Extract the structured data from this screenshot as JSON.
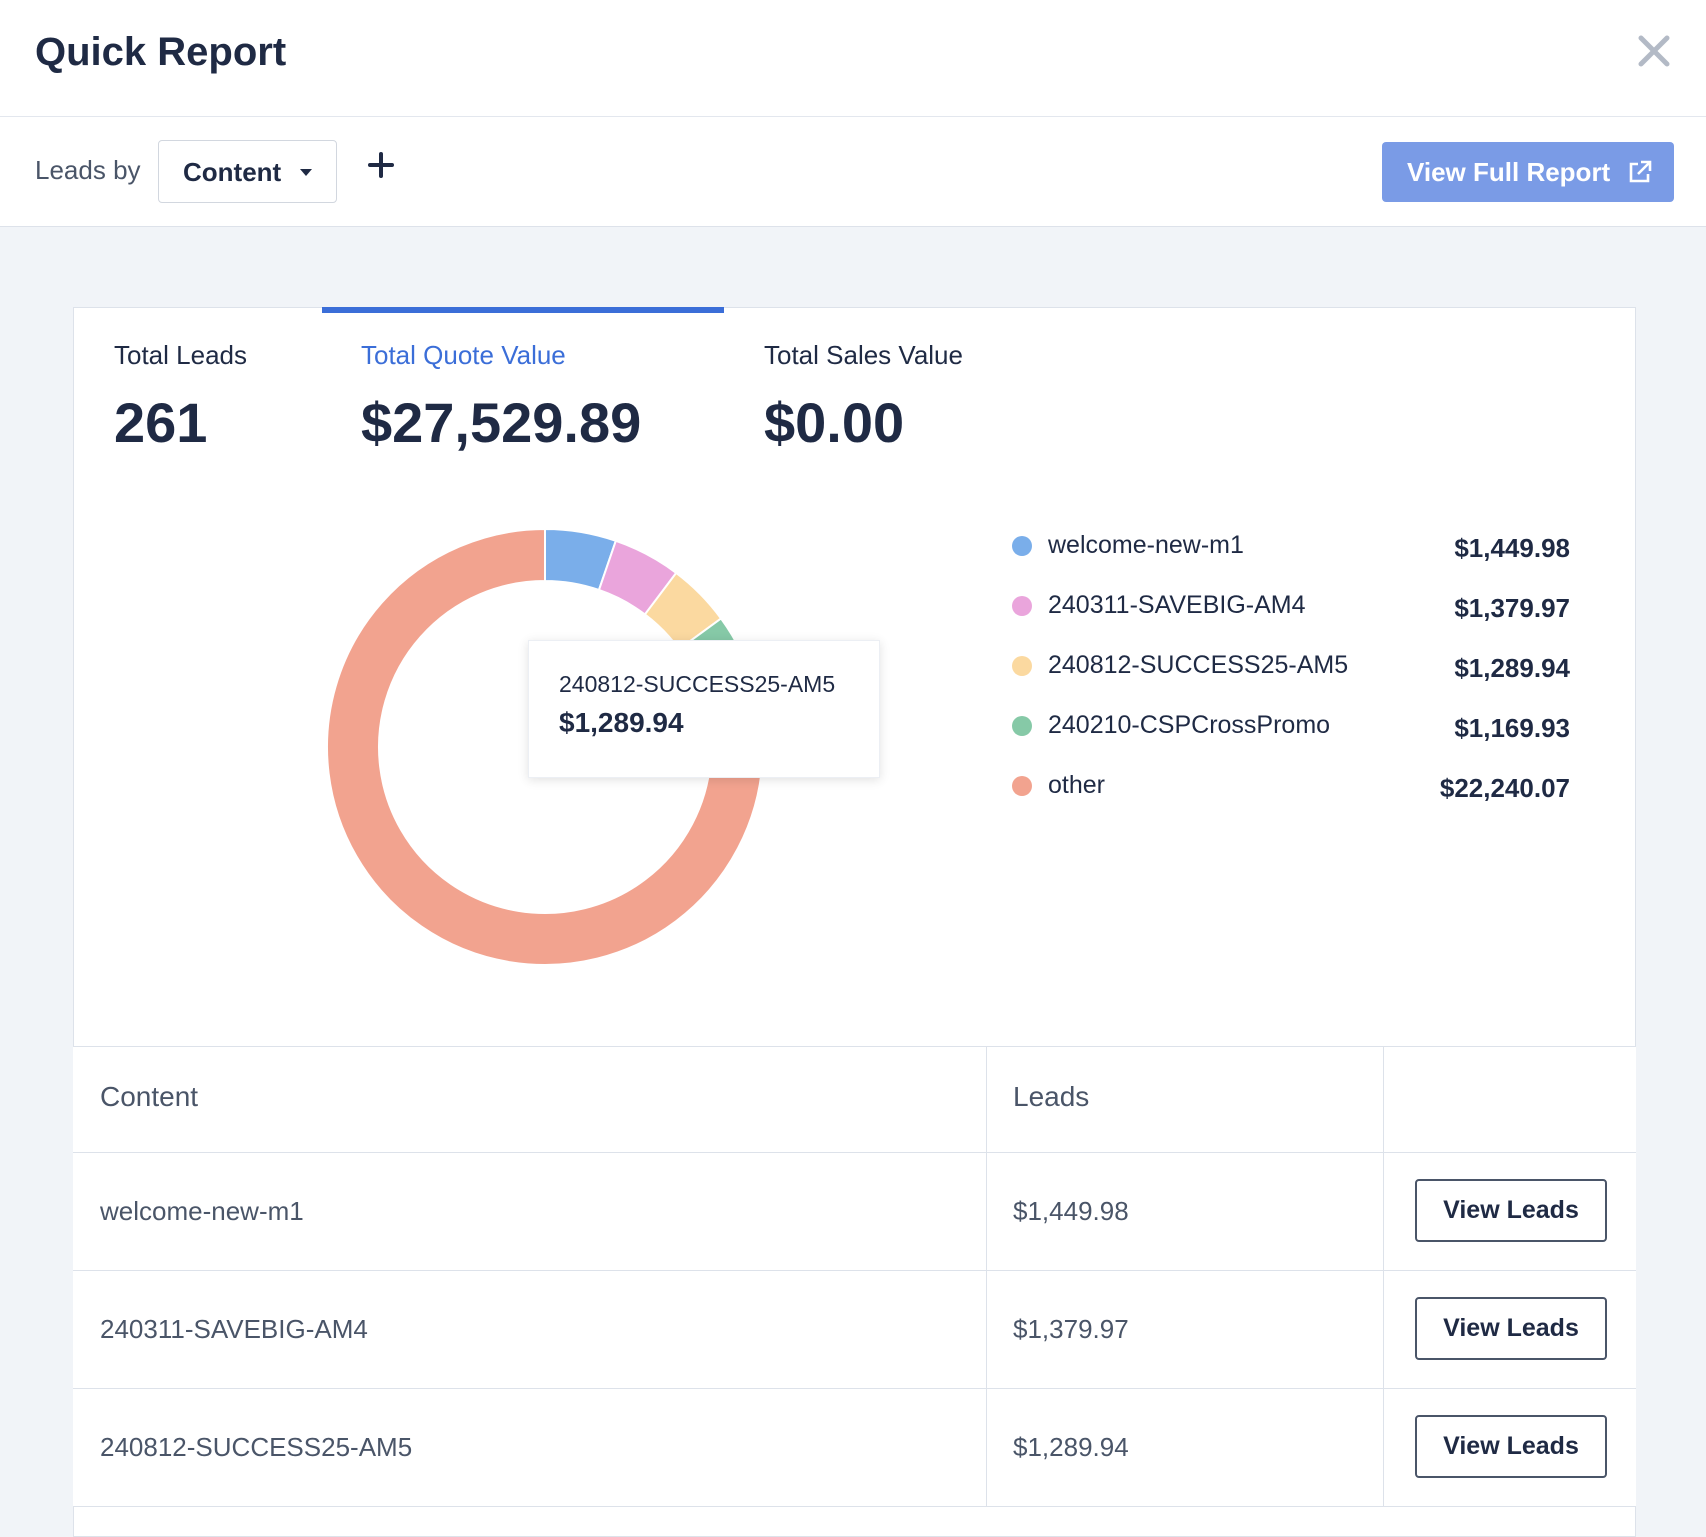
{
  "header": {
    "title": "Quick Report",
    "close_icon": "close-icon"
  },
  "toolbar": {
    "leads_by_label": "Leads by",
    "dropdown_value": "Content",
    "add_icon": "plus-icon",
    "view_full_report_label": "View Full Report",
    "external_icon": "external-link-icon",
    "accent_color": "#7a9be6"
  },
  "metrics": [
    {
      "label": "Total Leads",
      "value": "261",
      "active": false
    },
    {
      "label": "Total Quote Value",
      "value": "$27,529.89",
      "active": true
    },
    {
      "label": "Total Sales Value",
      "value": "$0.00",
      "active": false
    }
  ],
  "chart_data": {
    "type": "pie",
    "categories": [
      "welcome-new-m1",
      "240311-SAVEBIG-AM4",
      "240812-SUCCESS25-AM5",
      "240210-CSPCrossPromo",
      "other"
    ],
    "values": [
      1449.98,
      1379.97,
      1289.94,
      1169.93,
      22240.07
    ],
    "value_labels": [
      "$1,449.98",
      "$1,379.97",
      "$1,289.94",
      "$1,169.93",
      "$22,240.07"
    ],
    "colors": [
      "#7aaeea",
      "#eaa5dc",
      "#fbd9a0",
      "#86c9a7",
      "#f2a38f"
    ],
    "donut": true,
    "legend": "right"
  },
  "tooltip": {
    "name": "240812-SUCCESS25-AM5",
    "value": "$1,289.94"
  },
  "table": {
    "headers": [
      "Content",
      "Leads",
      ""
    ],
    "rows": [
      {
        "content": "welcome-new-m1",
        "leads": "$1,449.98",
        "action": "View Leads"
      },
      {
        "content": "240311-SAVEBIG-AM4",
        "leads": "$1,379.97",
        "action": "View Leads"
      },
      {
        "content": "240812-SUCCESS25-AM5",
        "leads": "$1,289.94",
        "action": "View Leads"
      }
    ]
  }
}
